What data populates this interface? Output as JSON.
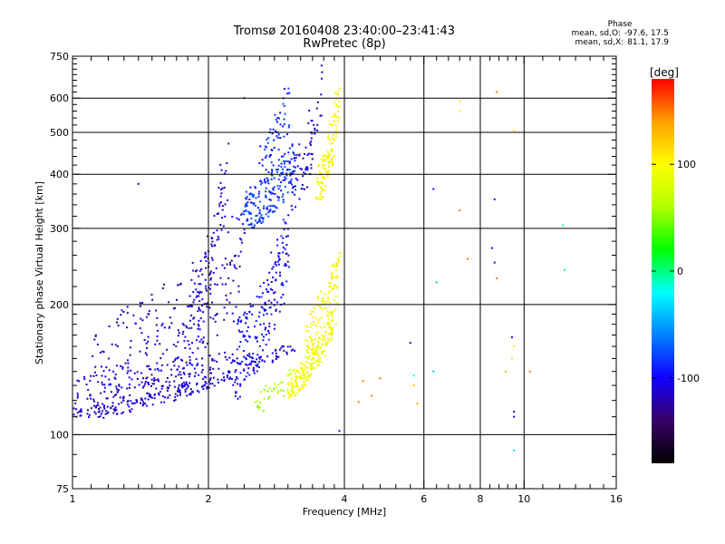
{
  "header": {
    "title": "Tromsø 20160408 23:40:00–23:41:43",
    "subtitle": "RwPretec (8p)"
  },
  "phase_box": {
    "heading": "Phase",
    "line_o_label": "mean, sd,O:",
    "line_o_value": "-97.6, 17.5",
    "line_x_label": "mean, sd,X:",
    "line_x_value": "81.1, 17.9"
  },
  "colorbar": {
    "unit_label": "[deg]",
    "vmin": -180,
    "vmax": 180,
    "ticks": [
      100,
      0,
      -100
    ],
    "palette": [
      "#000000",
      "#3a0066",
      "#1000ff",
      "#0080ff",
      "#00ffff",
      "#00ff00",
      "#b0ff00",
      "#ffff00",
      "#ffa000",
      "#ff0000"
    ]
  },
  "chart_data": {
    "type": "scatter",
    "title": "Tromsø 20160408 23:40:00–23:41:43",
    "subtitle": "RwPretec (8p)",
    "xlabel": "Frequency [MHz]",
    "ylabel": "Stationary phase Virtual Height [km]",
    "xscale": "log",
    "yscale": "log",
    "xlim": [
      1,
      16
    ],
    "ylim": [
      75,
      750
    ],
    "xticks": [
      1,
      2,
      4,
      6,
      8,
      10,
      16
    ],
    "yticks": [
      75,
      100,
      200,
      300,
      400,
      500,
      600,
      750
    ],
    "x_minor_ticks": [
      1.1,
      1.2,
      1.3,
      1.4,
      1.5,
      1.6,
      1.7,
      1.8,
      1.9,
      2.2,
      2.4,
      2.6,
      2.8,
      3,
      3.2,
      3.4,
      3.6,
      3.8,
      4.4,
      4.8,
      5.2,
      5.6,
      6.4,
      6.8,
      7.2,
      7.6,
      8.4,
      8.8,
      9.2,
      9.6,
      11,
      12,
      13,
      14,
      15
    ],
    "y_minor_ticks": [
      80,
      90,
      110,
      120,
      130,
      140,
      150,
      160,
      170,
      180,
      190,
      220,
      240,
      260,
      280,
      320,
      340,
      360,
      380,
      420,
      440,
      460,
      480,
      520,
      540,
      560,
      580,
      620,
      640,
      660,
      680,
      700,
      720,
      740
    ],
    "x_gridlines": [
      2,
      4,
      6,
      8,
      10
    ],
    "y_gridlines": [
      100,
      200,
      300,
      400,
      500,
      600
    ],
    "grid": true,
    "legend": "colorbar right",
    "color_by": "phase (deg)",
    "traces": [
      {
        "x0": 1.0,
        "x1": 3.1,
        "h0": 112,
        "h1": 160,
        "phase": -110,
        "n": 180,
        "spread": 0.035
      },
      {
        "x0": 1.0,
        "x1": 2.3,
        "h0": 125,
        "h1": 145,
        "phase": -112,
        "n": 170,
        "spread": 0.09
      },
      {
        "x0": 1.1,
        "x1": 2.4,
        "h0": 140,
        "h1": 260,
        "phase": -115,
        "n": 240,
        "spread": 0.28
      },
      {
        "x0": 1.7,
        "x1": 2.2,
        "h0": 150,
        "h1": 400,
        "phase": -110,
        "n": 130,
        "spread": 0.18
      },
      {
        "x0": 2.3,
        "x1": 3.0,
        "h0": 150,
        "h1": 270,
        "phase": -100,
        "n": 200,
        "spread": 0.22
      },
      {
        "x0": 2.4,
        "x1": 3.1,
        "h0": 330,
        "h1": 420,
        "phase": -85,
        "n": 200,
        "spread": 0.12
      },
      {
        "x0": 2.6,
        "x1": 3.0,
        "h0": 420,
        "h1": 580,
        "phase": -90,
        "n": 60,
        "spread": 0.12
      },
      {
        "x0": 3.0,
        "x1": 3.6,
        "h0": 360,
        "h1": 640,
        "phase": -110,
        "n": 70,
        "spread": 0.15
      },
      {
        "x0": 3.0,
        "x1": 3.8,
        "h0": 130,
        "h1": 185,
        "phase": 95,
        "n": 200,
        "spread": 0.07
      },
      {
        "x0": 3.3,
        "x1": 3.9,
        "h0": 170,
        "h1": 240,
        "phase": 100,
        "n": 110,
        "spread": 0.12
      },
      {
        "x0": 3.5,
        "x1": 3.9,
        "h0": 380,
        "h1": 600,
        "phase": 100,
        "n": 120,
        "spread": 0.1
      },
      {
        "x0": 2.5,
        "x1": 3.0,
        "h0": 118,
        "h1": 135,
        "phase": 60,
        "n": 30,
        "spread": 0.06
      }
    ],
    "points": [
      {
        "x": 6.3,
        "y": 370,
        "phase": -100
      },
      {
        "x": 7.2,
        "y": 330,
        "phase": 150
      },
      {
        "x": 7.2,
        "y": 590,
        "phase": 110
      },
      {
        "x": 7.2,
        "y": 560,
        "phase": 110
      },
      {
        "x": 8.6,
        "y": 350,
        "phase": -100
      },
      {
        "x": 8.7,
        "y": 620,
        "phase": 150
      },
      {
        "x": 8.5,
        "y": 270,
        "phase": -100
      },
      {
        "x": 8.6,
        "y": 250,
        "phase": -100
      },
      {
        "x": 8.7,
        "y": 230,
        "phase": 150
      },
      {
        "x": 7.5,
        "y": 255,
        "phase": 150
      },
      {
        "x": 6.4,
        "y": 225,
        "phase": -40
      },
      {
        "x": 12.2,
        "y": 305,
        "phase": 0
      },
      {
        "x": 12.3,
        "y": 240,
        "phase": 0
      },
      {
        "x": 9.5,
        "y": 505,
        "phase": 110
      },
      {
        "x": 5.6,
        "y": 163,
        "phase": -100
      },
      {
        "x": 5.7,
        "y": 137,
        "phase": -20
      },
      {
        "x": 5.7,
        "y": 130,
        "phase": 130
      },
      {
        "x": 5.8,
        "y": 118,
        "phase": 140
      },
      {
        "x": 6.3,
        "y": 140,
        "phase": -40
      },
      {
        "x": 4.4,
        "y": 133,
        "phase": 150
      },
      {
        "x": 4.8,
        "y": 135,
        "phase": 150
      },
      {
        "x": 4.6,
        "y": 123,
        "phase": 150
      },
      {
        "x": 4.3,
        "y": 119,
        "phase": 150
      },
      {
        "x": 9.4,
        "y": 168,
        "phase": -100
      },
      {
        "x": 9.5,
        "y": 160,
        "phase": 110
      },
      {
        "x": 9.4,
        "y": 150,
        "phase": 110
      },
      {
        "x": 9.1,
        "y": 140,
        "phase": 130
      },
      {
        "x": 10.3,
        "y": 140,
        "phase": 150
      },
      {
        "x": 9.5,
        "y": 113,
        "phase": -100
      },
      {
        "x": 9.5,
        "y": 110,
        "phase": -100
      },
      {
        "x": 9.5,
        "y": 92,
        "phase": -30
      },
      {
        "x": 3.9,
        "y": 102,
        "phase": -100
      },
      {
        "x": 1.4,
        "y": 380,
        "phase": -110
      },
      {
        "x": 2.4,
        "y": 600,
        "phase": -110
      }
    ]
  }
}
